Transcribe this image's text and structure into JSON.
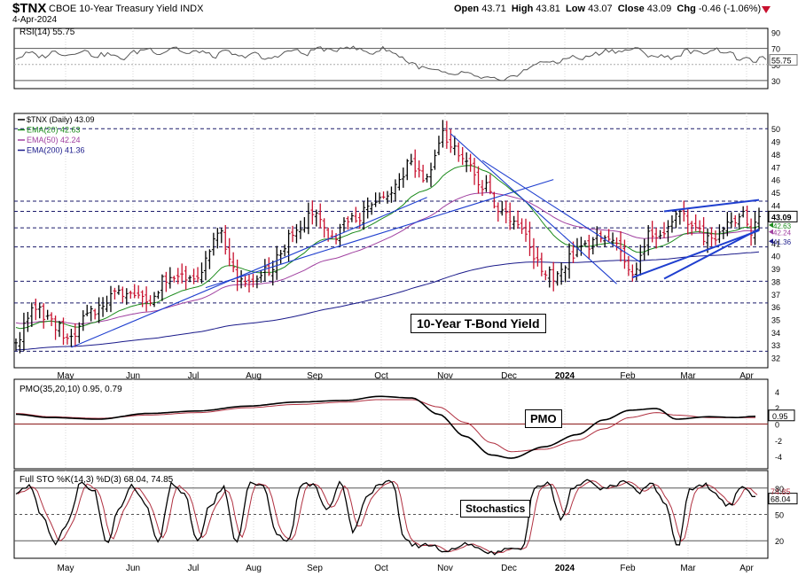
{
  "header": {
    "symbol": "$TNX",
    "name": "CBOE 10-Year Treasury Yield INDX",
    "date": "4-Apr-2024",
    "open_label": "Open",
    "open": "43.71",
    "high_label": "High",
    "high": "43.81",
    "low_label": "Low",
    "low": "43.07",
    "close_label": "Close",
    "close": "43.09",
    "chg_label": "Chg",
    "chg": "-0.46 (-1.06%)"
  },
  "colors": {
    "price_up": "#000000",
    "price_down": "#c8102e",
    "ema20": "#1a8a1a",
    "ema50": "#a040a0",
    "ema200": "#1a1a8a",
    "trend": "#1f3fcf",
    "indicator": "#000000",
    "signal": "#b03040",
    "zero_line": "#8b1a1a"
  },
  "chart_data": [
    {
      "type": "line",
      "panel": "rsi",
      "legend": [
        "RSI(14) 55.75"
      ],
      "ylim": [
        20,
        95
      ],
      "y_ticks": [
        30,
        50,
        55.75,
        70,
        90
      ],
      "y_tick_labels": [
        "30",
        "50",
        "55.75",
        "70",
        "90"
      ],
      "reference_levels": [
        30,
        70
      ],
      "current_value": 55.75,
      "series": [
        {
          "values_anchor": [
            58,
            64,
            60,
            66,
            62,
            68,
            61,
            63,
            57,
            65,
            70,
            64,
            72,
            63,
            67,
            60,
            66,
            59,
            64,
            56,
            62,
            68,
            63,
            71,
            66,
            73,
            69,
            64,
            70,
            62,
            52,
            45,
            42,
            36,
            40,
            34,
            33,
            28,
            38,
            45,
            55,
            51,
            60,
            57,
            63,
            68,
            66,
            70,
            62,
            60,
            59,
            67,
            64,
            69,
            66,
            57,
            55,
            58
          ]
        }
      ]
    },
    {
      "type": "ohlc",
      "panel": "price",
      "title": "10-Year T-Bond Yield",
      "legend": [
        "$TNX (Daily) 43.09",
        "EMA(20) 42.63",
        "EMA(50) 42.24",
        "EMA(200) 41.36"
      ],
      "ylim": [
        31.2,
        51.2
      ],
      "y_ticks": [
        32,
        33,
        34,
        35,
        36,
        37,
        38,
        39,
        40,
        41,
        42,
        43,
        44,
        45,
        46,
        47,
        48,
        49,
        50
      ],
      "y_tick_labels": [
        "32",
        "33",
        "34",
        "35",
        "36",
        "37",
        "38",
        "39",
        "40",
        "41",
        "42",
        "43",
        "44",
        "45",
        "46",
        "47",
        "48",
        "49",
        "50"
      ],
      "last_value_labels": [
        "43.09",
        "42.63",
        "42.24",
        "41.36"
      ],
      "horizontal_levels": [
        32.5,
        36.3,
        38.0,
        40.7,
        42.2,
        43.5,
        44.3,
        50.0
      ],
      "close_anchors": [
        [
          0,
          33.5
        ],
        [
          5,
          35.9
        ],
        [
          10,
          34.5
        ],
        [
          14,
          33.3
        ],
        [
          18,
          35.3
        ],
        [
          25,
          37.0
        ],
        [
          30,
          37.3
        ],
        [
          34,
          36.3
        ],
        [
          38,
          38.3
        ],
        [
          45,
          38.5
        ],
        [
          52,
          41.7
        ],
        [
          55,
          38.7
        ],
        [
          58,
          37.7
        ],
        [
          64,
          39.0
        ],
        [
          70,
          41.5
        ],
        [
          76,
          43.6
        ],
        [
          80,
          41.5
        ],
        [
          84,
          42.7
        ],
        [
          90,
          43.6
        ],
        [
          95,
          45.3
        ],
        [
          100,
          47.3
        ],
        [
          104,
          46.0
        ],
        [
          108,
          49.6
        ],
        [
          112,
          48.2
        ],
        [
          114,
          47.0
        ],
        [
          118,
          45.5
        ],
        [
          124,
          43.1
        ],
        [
          128,
          42.0
        ],
        [
          132,
          39.4
        ],
        [
          136,
          38.3
        ],
        [
          138,
          38.8
        ],
        [
          141,
          40.2
        ],
        [
          144,
          40.6
        ],
        [
          148,
          41.6
        ],
        [
          152,
          40.8
        ],
        [
          156,
          38.3
        ],
        [
          160,
          41.5
        ],
        [
          164,
          42.0
        ],
        [
          168,
          43.3
        ],
        [
          172,
          42.0
        ],
        [
          176,
          41.1
        ],
        [
          180,
          42.3
        ],
        [
          184,
          43.4
        ],
        [
          186,
          42.0
        ],
        [
          188,
          43.09
        ]
      ],
      "series": [
        {
          "name": "EMA(20)",
          "last": 42.63
        },
        {
          "name": "EMA(50)",
          "last": 42.24
        },
        {
          "name": "EMA(200)",
          "last": 41.36
        }
      ],
      "x_tick_labels": [
        "May",
        "Jun",
        "Jul",
        "Aug",
        "Sep",
        "Oct",
        "Nov",
        "Dec",
        "2024",
        "Feb",
        "Mar",
        "Apr"
      ]
    },
    {
      "type": "line",
      "panel": "pmo",
      "title": "PMO",
      "legend": [
        "PMO(35,20,10) 0.95, 0.79"
      ],
      "ylim": [
        -5.5,
        5.5
      ],
      "y_ticks": [
        -4,
        -2,
        0,
        2,
        4
      ],
      "y_tick_labels": [
        "-4",
        "-2",
        "0",
        "2",
        "4"
      ],
      "current_value_label": "0.95",
      "series": [
        {
          "name": "PMO",
          "values_anchor": [
            [
              0,
              1.2
            ],
            [
              10,
              0.8
            ],
            [
              25,
              0.6
            ],
            [
              40,
              1.3
            ],
            [
              55,
              1.6
            ],
            [
              70,
              2.2
            ],
            [
              85,
              2.7
            ],
            [
              100,
              2.9
            ],
            [
              110,
              3.4
            ],
            [
              120,
              3.2
            ],
            [
              128,
              1.2
            ],
            [
              136,
              -1.5
            ],
            [
              144,
              -3.8
            ],
            [
              150,
              -4.2
            ],
            [
              160,
              -2.8
            ],
            [
              170,
              -1.3
            ],
            [
              178,
              0.5
            ],
            [
              186,
              1.7
            ],
            [
              194,
              1.9
            ],
            [
              200,
              0.6
            ],
            [
              210,
              0.9
            ],
            [
              218,
              0.8
            ],
            [
              224,
              0.95
            ]
          ]
        },
        {
          "name": "Signal",
          "values_anchor": [
            [
              0,
              1.3
            ],
            [
              10,
              0.9
            ],
            [
              25,
              0.7
            ],
            [
              40,
              1.1
            ],
            [
              55,
              1.4
            ],
            [
              70,
              2.0
            ],
            [
              85,
              2.4
            ],
            [
              100,
              2.7
            ],
            [
              110,
              3.0
            ],
            [
              120,
              3.0
            ],
            [
              128,
              2.1
            ],
            [
              136,
              0.2
            ],
            [
              144,
              -2.3
            ],
            [
              150,
              -3.4
            ],
            [
              160,
              -3.1
            ],
            [
              170,
              -2.0
            ],
            [
              178,
              -0.6
            ],
            [
              186,
              0.8
            ],
            [
              194,
              1.4
            ],
            [
              200,
              1.1
            ],
            [
              210,
              0.8
            ],
            [
              218,
              0.8
            ],
            [
              224,
              0.79
            ]
          ]
        }
      ]
    },
    {
      "type": "line",
      "panel": "stochastics",
      "title": "Stochastics",
      "legend": [
        "Full STO %K(14,3) %D(3) 68.04, 74.85"
      ],
      "ylim": [
        0,
        100
      ],
      "y_ticks": [
        20,
        50,
        68.04,
        74.85,
        80
      ],
      "y_tick_labels": [
        "20",
        "50",
        "68.04",
        "74.85",
        "80"
      ],
      "reference_levels": [
        20,
        50,
        80
      ],
      "series": [
        {
          "name": "%K",
          "values_anchor": [
            72,
            84,
            48,
            18,
            40,
            86,
            78,
            16,
            58,
            83,
            62,
            16,
            86,
            72,
            18,
            62,
            80,
            18,
            84,
            86,
            30,
            20,
            86,
            82,
            56,
            86,
            30,
            70,
            86,
            86,
            20,
            14,
            16,
            8,
            12,
            18,
            8,
            6,
            10,
            12,
            80,
            86,
            44,
            82,
            88,
            80,
            82,
            86,
            76,
            86,
            62,
            14,
            80,
            84,
            72,
            60,
            84,
            68
          ]
        }
      ]
    }
  ]
}
